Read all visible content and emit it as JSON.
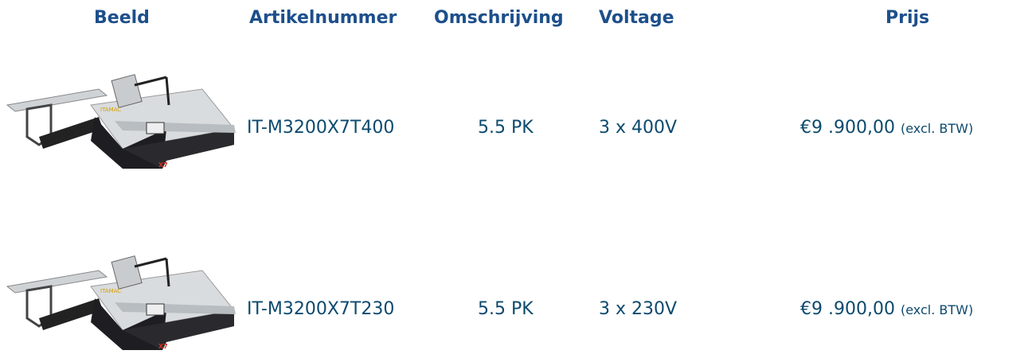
{
  "table": {
    "headers": [
      "Beeld",
      "Artikelnummer",
      "Omschrijving",
      "Voltage",
      "Prijs"
    ],
    "rows": [
      {
        "article": "IT-M3200X7T400",
        "description": "5.5 PK",
        "voltage": "3 x 400V",
        "price": "€9 .900,00",
        "price_note": "(excl. BTW)"
      },
      {
        "article": "IT-M3200X7T230",
        "description": "5.5 PK",
        "voltage": "3 x 230V",
        "price": "€9 .900,00",
        "price_note": "(excl. BTW)"
      }
    ]
  }
}
